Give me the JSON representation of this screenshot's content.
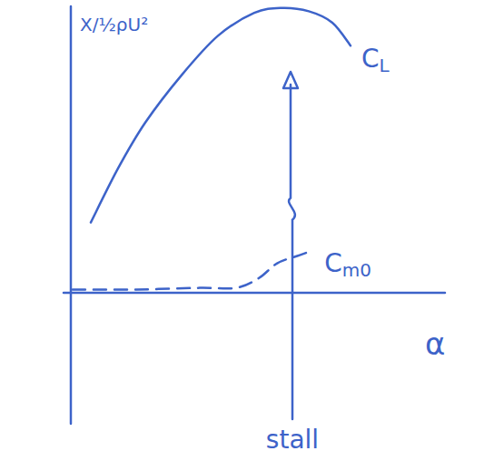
{
  "chart_data": {
    "type": "line",
    "y_label": "X/½ρU²",
    "x_label": "α",
    "xlim": [
      -0.2,
      10.3
    ],
    "ylim": [
      -0.8,
      1.75
    ],
    "tick_labels": false,
    "grid": false,
    "series": [
      {
        "name": "CL",
        "color": "#3d63c9",
        "line_style": "solid",
        "x": [
          0.55,
          1.3,
          2.05,
          3.05,
          4.05,
          5.05,
          5.8,
          6.55,
          7.2,
          7.7
        ],
        "values": [
          0.43,
          0.76,
          1.04,
          1.33,
          1.57,
          1.71,
          1.74,
          1.72,
          1.65,
          1.51
        ]
      },
      {
        "name": "Cm0",
        "color": "#3d63c9",
        "line_style": "dashed",
        "x": [
          0.05,
          1.8,
          3.55,
          4.55,
          5.18,
          5.68,
          6.3,
          6.68
        ],
        "values": [
          0.02,
          0.02,
          0.03,
          0.03,
          0.09,
          0.18,
          0.23,
          0.26
        ]
      }
    ],
    "annotations": [
      {
        "text": "stall",
        "x": 6.1,
        "y": 1.35
      }
    ]
  }
}
